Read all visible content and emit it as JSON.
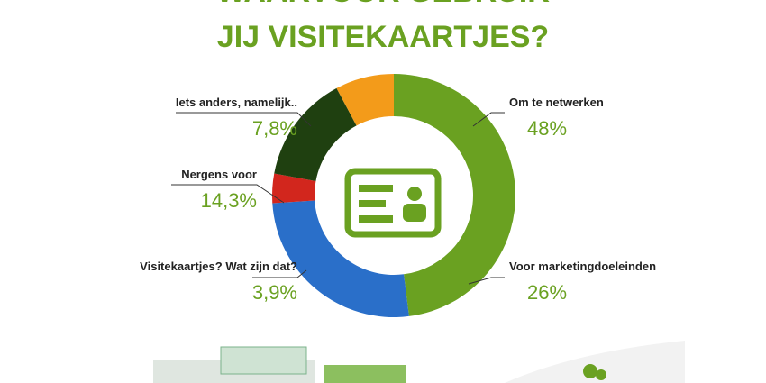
{
  "chart_data": {
    "type": "donut",
    "title": "WAARVOOR GEBRUIK",
    "subtitle": "JIJ VISITEKAARTJES?",
    "categories": [
      "Om te netwerken",
      "Voor marketingdoeleinden",
      "Visitekaartjes? Wat zijn dat?",
      "Nergens voor",
      "Iets anders, namelijk.."
    ],
    "values": [
      48,
      26,
      3.9,
      14.3,
      7.8
    ],
    "value_labels": [
      "48%",
      "26%",
      "3,9%",
      "14,3%",
      "7,8%"
    ],
    "colors": [
      "#6aa121",
      "#2a6fc9",
      "#d2261d",
      "#1f4010",
      "#f39b1a"
    ]
  }
}
